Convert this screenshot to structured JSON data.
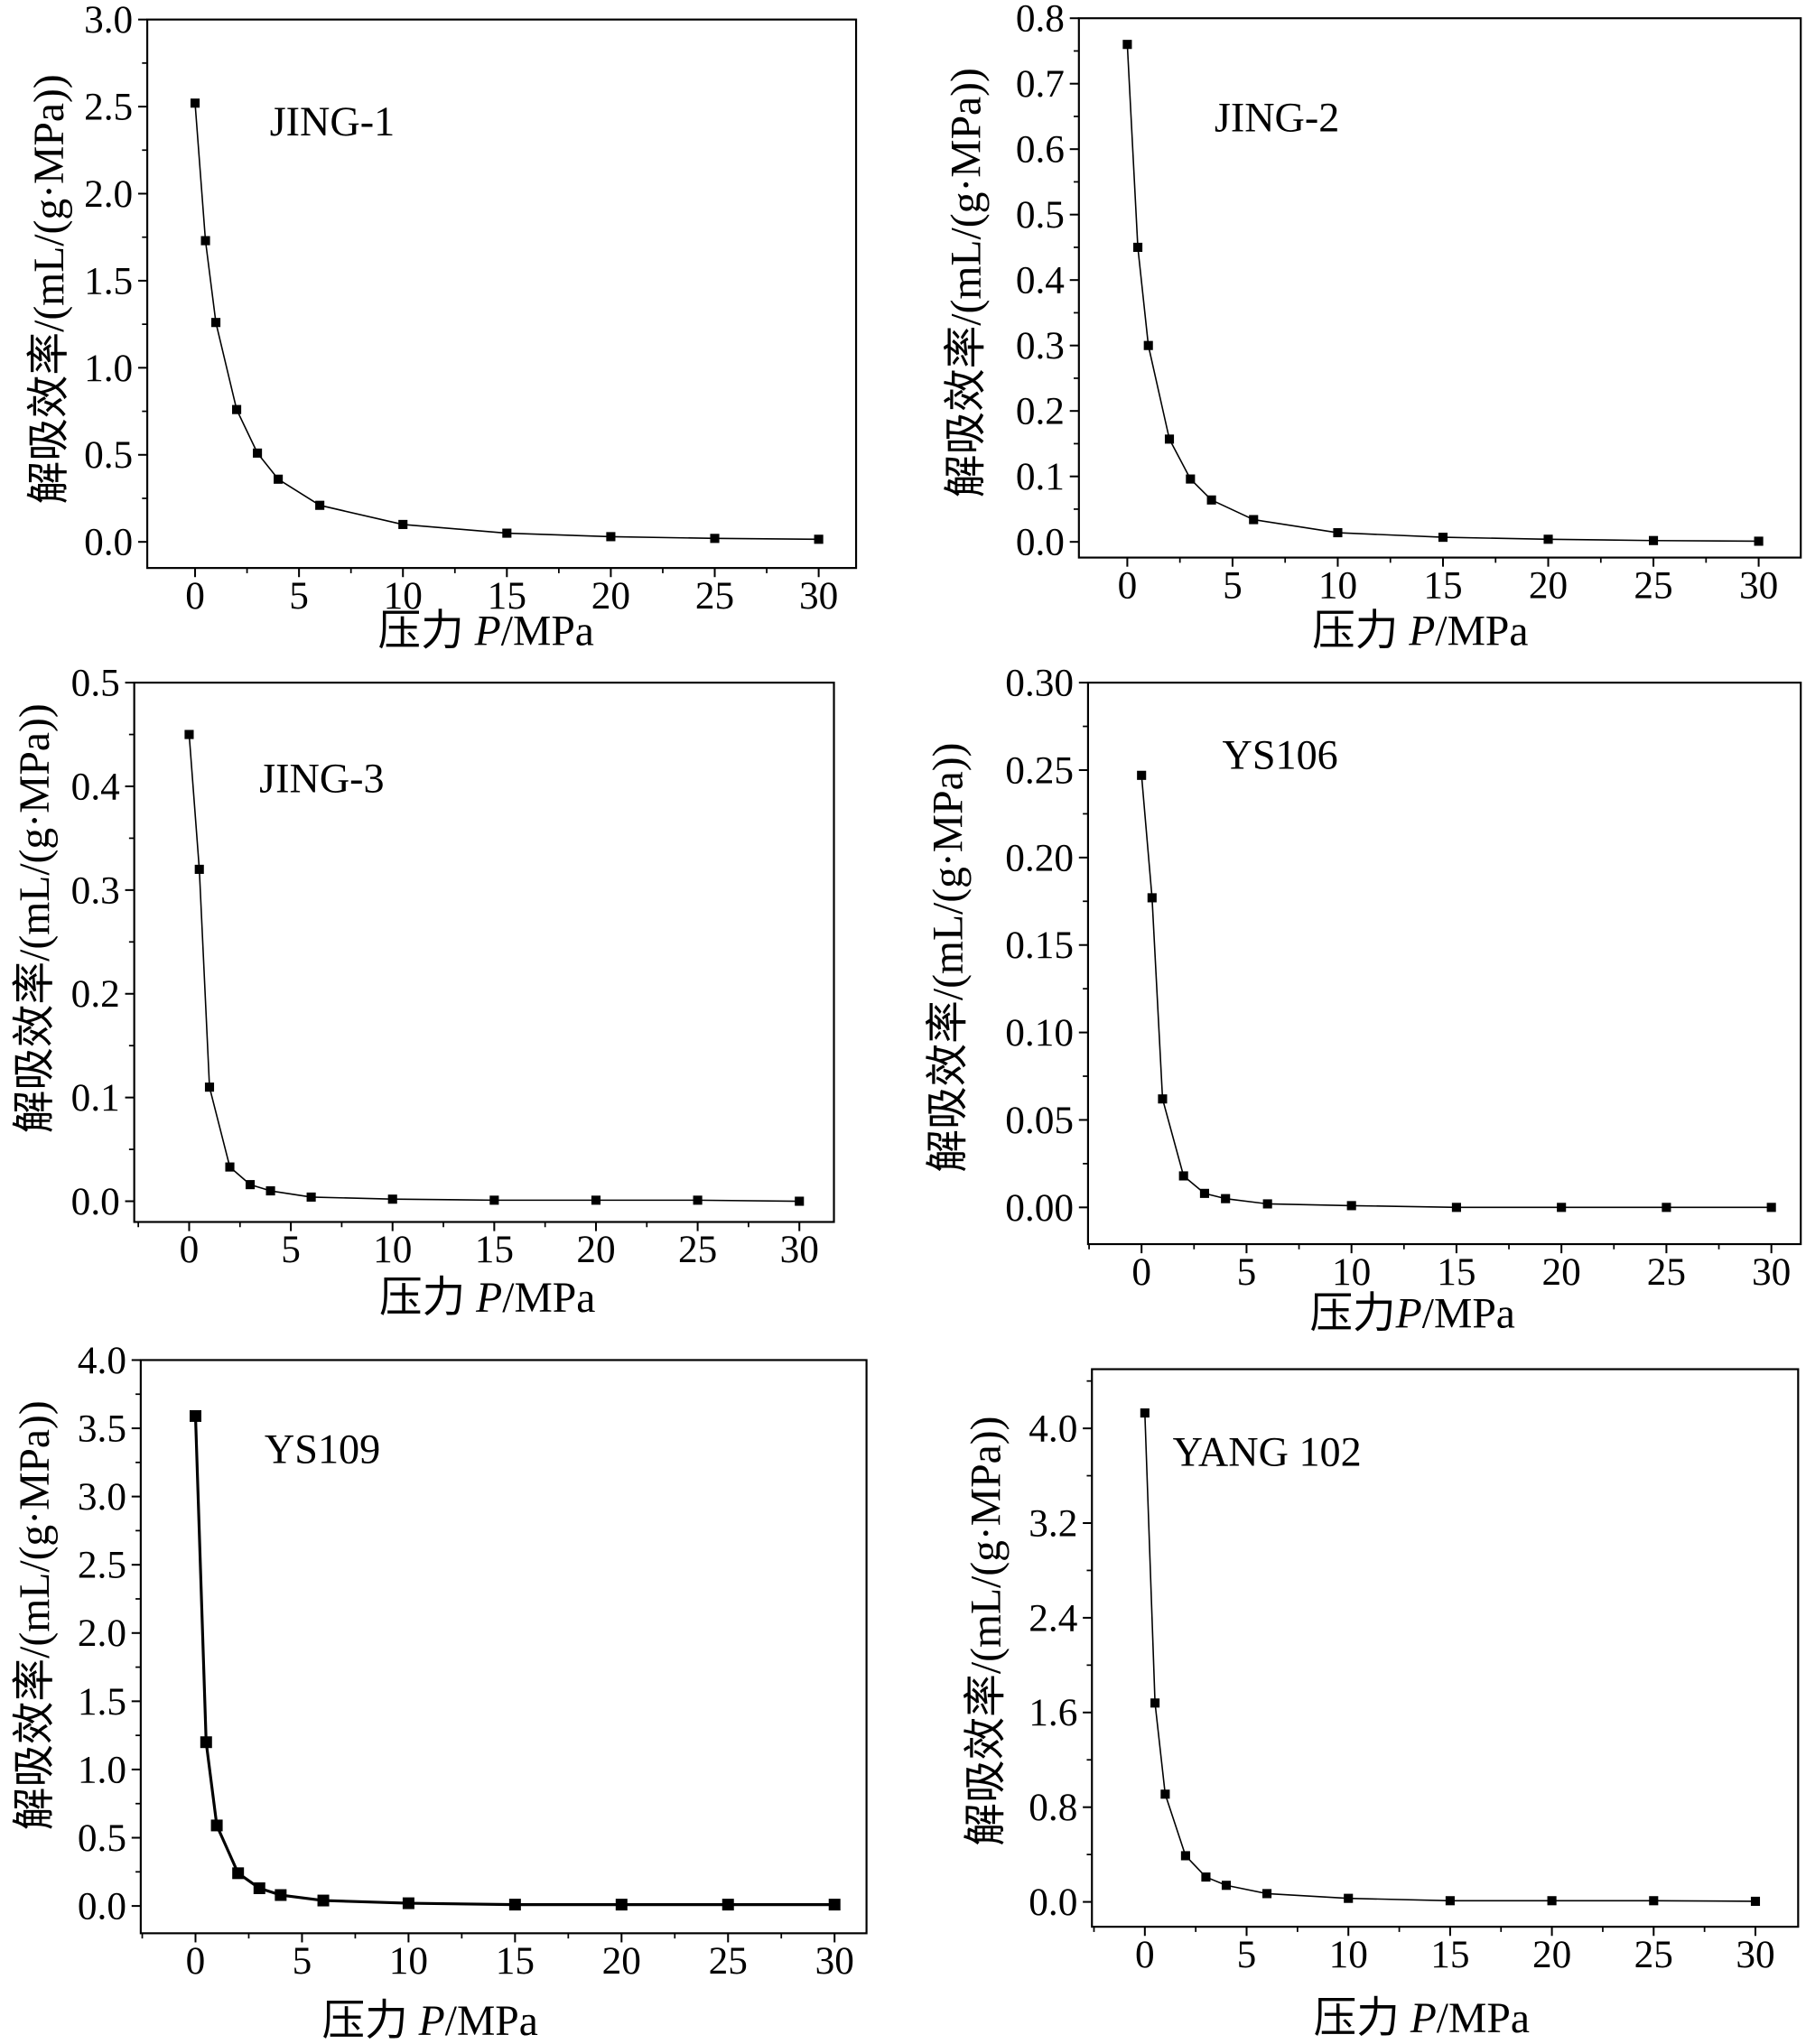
{
  "colors": {
    "ink": "#000000",
    "background": "#ffffff"
  },
  "chart_data": [
    {
      "type": "line",
      "marker": "square",
      "label": "JING-1",
      "x": [
        0,
        0.5,
        1,
        2,
        3,
        4,
        6,
        10,
        15,
        20,
        25,
        30
      ],
      "y": [
        2.52,
        1.73,
        1.26,
        0.76,
        0.51,
        0.36,
        0.21,
        0.1,
        0.05,
        0.03,
        0.02,
        0.015
      ],
      "xlabel": {
        "pre": "压力 ",
        "var": "P",
        "post": "/MPa"
      },
      "ylabel": "解吸效率/(mL/(g·MPa))",
      "xlim": [
        -2.3,
        31.8
      ],
      "ylim": [
        -0.15,
        3.0
      ],
      "xticks": [
        0,
        5,
        10,
        15,
        20,
        25,
        30
      ],
      "xtick_labels": [
        "0",
        "5",
        "10",
        "15",
        "20",
        "25",
        "30"
      ],
      "yticks": [
        0,
        0.5,
        1.0,
        1.5,
        2.0,
        2.5,
        3.0
      ],
      "ytick_labels": [
        "0.0",
        "0.5",
        "1.0",
        "1.5",
        "2.0",
        "2.5",
        "3.0"
      ],
      "grid": false,
      "legend": "none"
    },
    {
      "type": "line",
      "marker": "square",
      "label": "JING-2",
      "x": [
        0,
        0.5,
        1,
        2,
        3,
        4,
        6,
        10,
        15,
        20,
        25,
        30
      ],
      "y": [
        0.76,
        0.45,
        0.3,
        0.157,
        0.096,
        0.064,
        0.034,
        0.014,
        0.007,
        0.004,
        0.002,
        0.001
      ],
      "xlabel": {
        "pre": "压力 ",
        "var": "P",
        "post": "/MPa"
      },
      "ylabel": "解吸效率/(mL/(g·MPa))",
      "xlim": [
        -2.3,
        32.0
      ],
      "ylim": [
        -0.024,
        0.8
      ],
      "xticks": [
        0,
        5,
        10,
        15,
        20,
        25,
        30
      ],
      "xtick_labels": [
        "0",
        "5",
        "10",
        "15",
        "20",
        "25",
        "30"
      ],
      "yticks": [
        0,
        0.1,
        0.2,
        0.3,
        0.4,
        0.5,
        0.6,
        0.7,
        0.8
      ],
      "ytick_labels": [
        "0.0",
        "0.1",
        "0.2",
        "0.3",
        "0.4",
        "0.5",
        "0.6",
        "0.7",
        "0.8"
      ],
      "grid": false,
      "legend": "none"
    },
    {
      "type": "line",
      "marker": "square",
      "label": "JING-3",
      "x": [
        0,
        0.5,
        1,
        2,
        3,
        4,
        6,
        10,
        15,
        20,
        25,
        30
      ],
      "y": [
        0.45,
        0.32,
        0.11,
        0.033,
        0.016,
        0.01,
        0.004,
        0.002,
        0.001,
        0.001,
        0.001,
        0.0
      ],
      "xlabel": {
        "pre": "压力 ",
        "var": "P",
        "post": "/MPa"
      },
      "ylabel": "解吸效率/(mL/(g·MPa))",
      "xlim": [
        -2.7,
        31.7
      ],
      "ylim": [
        -0.02,
        0.5
      ],
      "xticks": [
        0,
        5,
        10,
        15,
        20,
        25,
        30
      ],
      "xtick_labels": [
        "0",
        "5",
        "10",
        "15",
        "20",
        "25",
        "30"
      ],
      "yticks": [
        0,
        0.1,
        0.2,
        0.3,
        0.4,
        0.5
      ],
      "ytick_labels": [
        "0.0",
        "0.1",
        "0.2",
        "0.3",
        "0.4",
        "0.5"
      ],
      "grid": false,
      "legend": "none"
    },
    {
      "type": "line",
      "marker": "square",
      "label": "YS106",
      "x": [
        0,
        0.5,
        1,
        2,
        3,
        4,
        6,
        10,
        15,
        20,
        25,
        30
      ],
      "y": [
        0.247,
        0.177,
        0.062,
        0.018,
        0.008,
        0.005,
        0.002,
        0.001,
        0.0,
        0.0,
        0.0,
        0.0
      ],
      "xlabel": {
        "pre": "压力",
        "var": "P",
        "post": "/MPa"
      },
      "ylabel": "解吸效率/(mL/(g·MPa))",
      "xlim": [
        -2.55,
        31.4
      ],
      "ylim": [
        -0.021,
        0.3
      ],
      "xticks": [
        0,
        5,
        10,
        15,
        20,
        25,
        30
      ],
      "xtick_labels": [
        "0",
        "5",
        "10",
        "15",
        "20",
        "25",
        "30"
      ],
      "yticks": [
        0,
        0.05,
        0.1,
        0.15,
        0.2,
        0.25,
        0.3
      ],
      "ytick_labels": [
        "0.00",
        "0.05",
        "0.10",
        "0.15",
        "0.20",
        "0.25",
        "0.30"
      ],
      "grid": false,
      "legend": "none"
    },
    {
      "type": "line",
      "marker": "square",
      "label": "YS109",
      "x": [
        0,
        0.5,
        1,
        2,
        3,
        4,
        6,
        10,
        15,
        20,
        25,
        30
      ],
      "y": [
        3.59,
        1.2,
        0.59,
        0.24,
        0.13,
        0.08,
        0.04,
        0.02,
        0.01,
        0.01,
        0.01,
        0.01
      ],
      "xlabel": {
        "pre": "压力 ",
        "var": "P",
        "post": "/MPa"
      },
      "ylabel": "解吸效率/(mL/(g·MPa))",
      "xlim": [
        -2.57,
        31.5
      ],
      "ylim": [
        -0.2,
        4.0
      ],
      "xticks": [
        0,
        5,
        10,
        15,
        20,
        25,
        30
      ],
      "xtick_labels": [
        "0",
        "5",
        "10",
        "15",
        "20",
        "25",
        "30"
      ],
      "yticks": [
        0,
        0.5,
        1.0,
        1.5,
        2.0,
        2.5,
        3.0,
        3.5,
        4.0
      ],
      "ytick_labels": [
        "0.0",
        "0.5",
        "1.0",
        "1.5",
        "2.0",
        "2.5",
        "3.0",
        "3.5",
        "4.0"
      ],
      "grid": false,
      "legend": "none"
    },
    {
      "type": "line",
      "marker": "square",
      "label": "YANG 102",
      "x": [
        0,
        0.5,
        1,
        2,
        3,
        4,
        6,
        10,
        15,
        20,
        25,
        30
      ],
      "y": [
        4.13,
        1.68,
        0.91,
        0.39,
        0.21,
        0.14,
        0.07,
        0.03,
        0.01,
        0.01,
        0.01,
        0.005
      ],
      "xlabel": {
        "pre": "压力 ",
        "var": "P",
        "post": "/MPa"
      },
      "ylabel": "解吸效率/(mL/(g·MPa))",
      "xlim": [
        -2.6,
        32.1
      ],
      "ylim": [
        -0.21,
        4.5
      ],
      "xticks": [
        0,
        5,
        10,
        15,
        20,
        25,
        30
      ],
      "xtick_labels": [
        "0",
        "5",
        "10",
        "15",
        "20",
        "25",
        "30"
      ],
      "yticks": [
        0,
        0.8,
        1.6,
        2.4,
        3.2,
        4.0
      ],
      "ytick_labels": [
        "0.0",
        "0.8",
        "1.6",
        "2.4",
        "3.2",
        "4.0"
      ],
      "grid": false,
      "legend": "none"
    }
  ]
}
